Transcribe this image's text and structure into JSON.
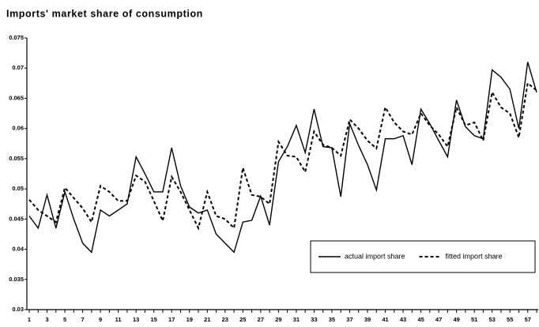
{
  "chart_data": {
    "type": "line",
    "title": "Imports' market share of consumption",
    "categories": [
      1,
      null,
      3,
      null,
      5,
      null,
      7,
      null,
      9,
      null,
      11,
      null,
      13,
      null,
      15,
      null,
      17,
      null,
      19,
      null,
      21,
      null,
      23,
      null,
      25,
      null,
      27,
      null,
      29,
      null,
      31,
      null,
      33,
      null,
      35,
      null,
      37,
      null,
      39,
      null,
      41,
      null,
      43,
      null,
      45,
      null,
      47,
      null,
      49,
      null,
      51,
      null,
      53,
      null,
      55,
      null,
      57,
      null
    ],
    "series": [
      {
        "name": "actual import share",
        "color": "#000000",
        "style": "solid",
        "values": [
          0.0455,
          0.0435,
          0.049,
          0.0435,
          0.0495,
          0.045,
          0.041,
          0.0395,
          0.0465,
          0.0455,
          0.0465,
          0.0475,
          0.0553,
          0.0525,
          0.0495,
          0.0495,
          0.0568,
          0.0505,
          0.047,
          0.046,
          0.0465,
          0.0425,
          0.041,
          0.0395,
          0.0445,
          0.0448,
          0.0488,
          0.044,
          0.0545,
          0.057,
          0.0605,
          0.056,
          0.0632,
          0.057,
          0.0568,
          0.0487,
          0.0608,
          0.0572,
          0.054,
          0.0498,
          0.0583,
          0.0583,
          0.0588,
          0.054,
          0.0632,
          0.0608,
          0.058,
          0.0553,
          0.0647,
          0.0603,
          0.0588,
          0.0583,
          0.0697,
          0.0685,
          0.0665,
          0.06,
          0.071,
          0.066
        ]
      },
      {
        "name": "fitted import share",
        "color": "#000000",
        "style": "dashed",
        "values": [
          0.0482,
          0.0465,
          0.0455,
          0.0445,
          0.0502,
          0.0485,
          0.0468,
          0.0445,
          0.0505,
          0.0495,
          0.048,
          0.048,
          0.0522,
          0.0512,
          0.048,
          0.0447,
          0.052,
          0.0495,
          0.0465,
          0.0435,
          0.0495,
          0.0455,
          0.045,
          0.0435,
          0.0535,
          0.049,
          0.0487,
          0.0475,
          0.0578,
          0.0555,
          0.0553,
          0.0528,
          0.0595,
          0.0573,
          0.0568,
          0.0555,
          0.0615,
          0.06,
          0.058,
          0.0567,
          0.0635,
          0.061,
          0.0595,
          0.059,
          0.0625,
          0.0605,
          0.059,
          0.057,
          0.0635,
          0.0605,
          0.061,
          0.058,
          0.066,
          0.0635,
          0.0625,
          0.0585,
          0.0675,
          0.0663
        ]
      }
    ],
    "ylim": [
      0.03,
      0.075
    ],
    "yticks": [
      0.03,
      0.035,
      0.04,
      0.045,
      0.05,
      0.055,
      0.06,
      0.065,
      0.07,
      0.075
    ],
    "grid": false,
    "legend": "lower right"
  }
}
